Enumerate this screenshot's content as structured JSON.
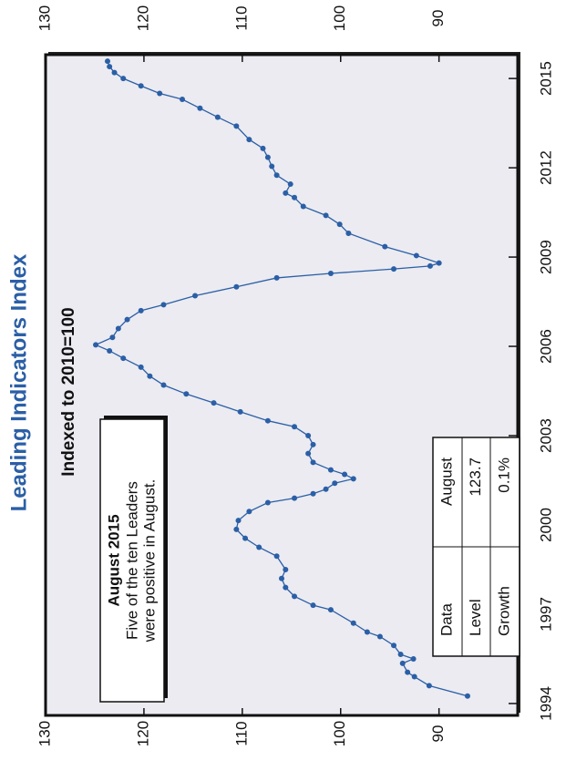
{
  "chart_data": {
    "type": "line",
    "title": "Leading Indicators Index",
    "subtitle": "Indexed to 2010=100",
    "x": [
      1994.25,
      1994.6,
      1994.9,
      1995.05,
      1995.35,
      1995.5,
      1995.65,
      1995.95,
      1996.25,
      1996.4,
      1996.7,
      1997.15,
      1997.3,
      1997.6,
      1997.9,
      1998.2,
      1998.5,
      1998.95,
      1999.25,
      1999.55,
      1999.85,
      2000.15,
      2000.45,
      2000.75,
      2000.9,
      2001.05,
      2001.2,
      2001.4,
      2001.55,
      2001.7,
      2001.85,
      2002.1,
      2002.4,
      2002.7,
      2003.0,
      2003.3,
      2003.5,
      2003.8,
      2004.1,
      2004.4,
      2004.7,
      2005.0,
      2005.3,
      2005.6,
      2005.85,
      2006.05,
      2006.3,
      2006.6,
      2006.9,
      2007.2,
      2007.4,
      2007.7,
      2008.0,
      2008.3,
      2008.45,
      2008.6,
      2008.7,
      2008.8,
      2009.05,
      2009.35,
      2009.8,
      2010.1,
      2010.4,
      2010.7,
      2011.0,
      2011.15,
      2011.45,
      2011.75,
      2012.05,
      2012.35,
      2012.65,
      2012.95,
      2013.4,
      2013.7,
      2014.0,
      2014.3,
      2014.5,
      2014.75,
      2015.0,
      2015.2,
      2015.4,
      2015.58
    ],
    "series": [
      {
        "name": "Leading Indicators Index",
        "color": "#2b5fa6",
        "values": [
          87.1,
          91.0,
          92.5,
          93.2,
          93.7,
          92.6,
          93.9,
          94.6,
          96.0,
          97.3,
          98.7,
          101.0,
          102.8,
          104.7,
          105.6,
          106.0,
          105.6,
          106.5,
          108.3,
          109.7,
          110.6,
          110.4,
          109.3,
          107.4,
          104.7,
          102.8,
          101.5,
          100.6,
          98.7,
          99.6,
          101.0,
          102.8,
          103.3,
          102.8,
          103.3,
          104.7,
          107.4,
          110.2,
          112.9,
          115.7,
          118.0,
          119.4,
          120.3,
          122.1,
          123.5,
          124.9,
          123.2,
          122.6,
          121.7,
          120.3,
          118.0,
          114.8,
          110.6,
          106.5,
          101.0,
          94.6,
          90.9,
          90.0,
          92.3,
          95.5,
          99.2,
          100.1,
          101.5,
          103.8,
          104.7,
          105.6,
          105.1,
          106.5,
          107.0,
          107.4,
          107.9,
          109.3,
          110.6,
          112.5,
          114.3,
          116.1,
          118.4,
          120.3,
          122.1,
          123.0,
          123.5,
          123.7
        ]
      }
    ],
    "xlim": [
      1993.6,
      2015.8
    ],
    "xticks": [
      1994,
      1997,
      2000,
      2003,
      2006,
      2009,
      2012,
      2015
    ],
    "ylim": [
      82,
      130
    ],
    "yticks": [
      90,
      100,
      110,
      120,
      130
    ],
    "annotation": {
      "title": "August 2015",
      "lines": [
        "Five of the ten Leaders",
        "were positive in August."
      ]
    },
    "table": {
      "rows": [
        [
          "Data",
          "August"
        ],
        [
          "Level",
          "123.7"
        ],
        [
          "Growth",
          "0.1%"
        ]
      ]
    }
  }
}
